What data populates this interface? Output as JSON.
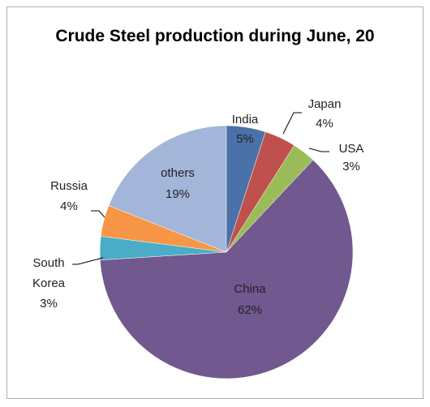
{
  "chart_data": {
    "type": "pie",
    "title": "Crude Steel production during June, 20",
    "categories": [
      "India",
      "Japan",
      "USA",
      "China",
      "South Korea",
      "Russia",
      "others"
    ],
    "values": [
      5,
      4,
      3,
      62,
      3,
      4,
      19
    ],
    "value_labels": [
      "5%",
      "4%",
      "3%",
      "62%",
      "3%",
      "4%",
      "19%"
    ],
    "colors": [
      "#4a72a8",
      "#c0504d",
      "#9bbb59",
      "#71588f",
      "#4aacc6",
      "#f79646",
      "#a3b5d9"
    ]
  }
}
